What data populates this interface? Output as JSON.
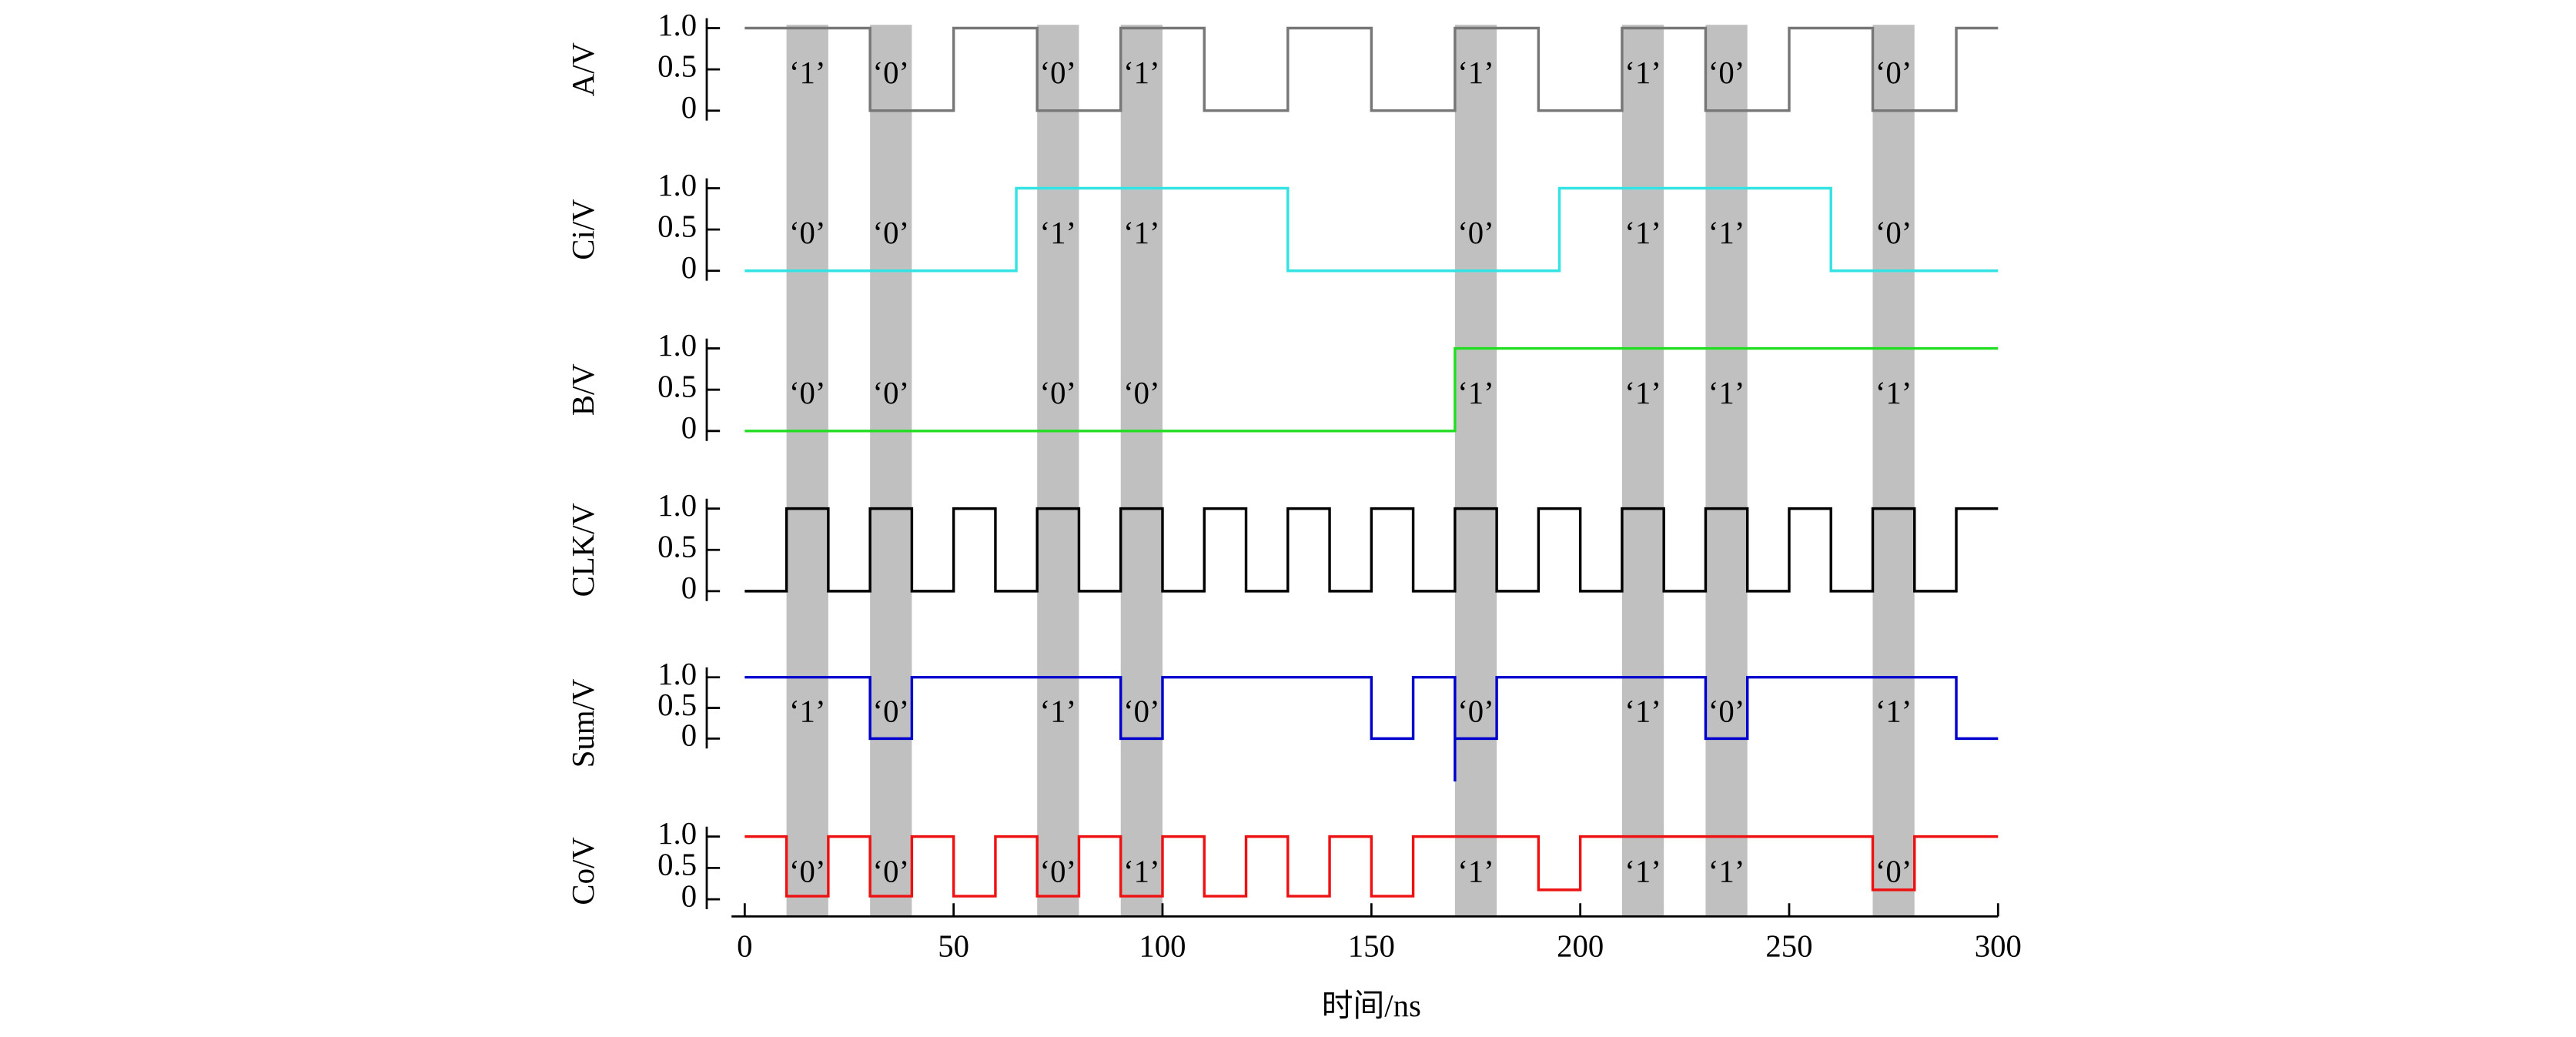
{
  "chart_data": [
    {
      "type": "line",
      "ylabel": "A/V",
      "ylim": [
        -0.1,
        1.1
      ],
      "yticks": [
        0,
        0.5,
        {
          "value": 1,
          "label": "1.0"
        }
      ],
      "bands": [
        [
          10,
          20
        ],
        [
          30,
          40
        ],
        [
          70,
          80
        ],
        [
          90,
          100
        ],
        [
          170,
          180
        ],
        [
          210,
          220
        ],
        [
          230,
          240
        ],
        [
          270,
          280
        ]
      ],
      "band_labels": [
        "‘1’",
        "‘0’",
        "‘0’",
        "‘1’",
        "‘1’",
        "‘1’",
        "‘0’",
        "‘0’"
      ],
      "x": [
        0,
        30,
        30,
        50,
        50,
        70,
        70,
        90,
        90,
        110,
        110,
        130,
        130,
        150,
        150,
        170,
        170,
        190,
        190,
        210,
        210,
        230,
        230,
        250,
        250,
        270,
        270,
        290,
        290,
        300
      ],
      "series": [
        {
          "color": "#777777",
          "values": [
            1,
            1,
            0,
            0,
            1,
            1,
            0,
            0,
            1,
            1,
            0,
            0,
            1,
            1,
            0,
            0,
            1,
            1,
            0,
            0,
            1,
            1,
            0,
            0,
            1,
            1,
            0,
            0,
            1,
            1
          ]
        }
      ]
    },
    {
      "type": "line",
      "ylabel": "Ci/V",
      "ylim": [
        -0.1,
        1.1
      ],
      "yticks": [
        0,
        0.5,
        {
          "value": 1,
          "label": "1.0"
        }
      ],
      "band_labels": [
        "‘0’",
        "‘0’",
        "‘1’",
        "‘1’",
        "‘0’",
        "‘1’",
        "‘1’",
        "‘0’"
      ],
      "x": [
        0,
        65,
        65,
        130,
        130,
        195,
        195,
        260,
        260,
        300
      ],
      "series": [
        {
          "color": "#33e3e3",
          "values": [
            0,
            0,
            1,
            1,
            0,
            0,
            1,
            1,
            0,
            0
          ]
        }
      ]
    },
    {
      "type": "line",
      "ylabel": "B/V",
      "ylim": [
        -0.1,
        1.1
      ],
      "yticks": [
        0,
        0.5,
        {
          "value": 1,
          "label": "1.0"
        }
      ],
      "band_labels": [
        "‘0’",
        "‘0’",
        "‘0’",
        "‘0’",
        "‘1’",
        "‘1’",
        "‘1’",
        "‘1’"
      ],
      "x": [
        0,
        170,
        170,
        300
      ],
      "series": [
        {
          "color": "#22dd22",
          "values": [
            0,
            0,
            1,
            1
          ]
        }
      ]
    },
    {
      "type": "line",
      "ylabel": "CLK/V",
      "ylim": [
        -0.1,
        1.1
      ],
      "yticks": [
        0,
        0.5,
        {
          "value": 1,
          "label": "1.0"
        }
      ],
      "x": [
        0,
        10,
        10,
        20,
        20,
        30,
        30,
        40,
        40,
        50,
        50,
        60,
        60,
        70,
        70,
        80,
        80,
        90,
        90,
        100,
        100,
        110,
        110,
        120,
        120,
        130,
        130,
        140,
        140,
        150,
        150,
        160,
        160,
        170,
        170,
        180,
        180,
        190,
        190,
        200,
        200,
        210,
        210,
        220,
        220,
        230,
        230,
        240,
        240,
        250,
        250,
        260,
        260,
        270,
        270,
        280,
        280,
        290,
        290,
        300
      ],
      "series": [
        {
          "color": "#000000",
          "values": [
            0,
            0,
            1,
            1,
            0,
            0,
            1,
            1,
            0,
            0,
            1,
            1,
            0,
            0,
            1,
            1,
            0,
            0,
            1,
            1,
            0,
            0,
            1,
            1,
            0,
            0,
            1,
            1,
            0,
            0,
            1,
            1,
            0,
            0,
            1,
            1,
            0,
            0,
            1,
            1,
            0,
            0,
            1,
            1,
            0,
            0,
            1,
            1,
            0,
            0,
            1,
            1,
            0,
            0,
            1,
            1,
            0,
            0,
            1,
            1
          ]
        }
      ]
    },
    {
      "type": "line",
      "ylabel": "Sum/V",
      "ylim": [
        -0.8,
        1.3
      ],
      "yticks": [
        0,
        0.5,
        {
          "value": 1,
          "label": "1.0"
        }
      ],
      "band_labels": [
        "‘1’",
        "‘0’",
        "‘1’",
        "‘0’",
        "‘0’",
        "‘1’",
        "‘0’",
        "‘1’"
      ],
      "x": [
        0,
        30,
        30,
        40,
        40,
        90,
        90,
        100,
        100,
        150,
        150,
        160,
        160,
        170,
        170,
        170,
        180,
        180,
        230,
        230,
        240,
        240,
        290,
        290,
        300
      ],
      "series": [
        {
          "color": "#0000cc",
          "values": [
            1,
            1,
            0,
            0,
            1,
            1,
            0,
            0,
            1,
            1,
            0,
            0,
            1,
            1,
            -0.7,
            0,
            0,
            1,
            1,
            0,
            0,
            1,
            1,
            0,
            0
          ]
        }
      ]
    },
    {
      "type": "line",
      "ylabel": "Co/V",
      "ylim": [
        -0.3,
        1.2
      ],
      "yticks": [
        0,
        0.5,
        {
          "value": 1,
          "label": "1.0"
        }
      ],
      "band_labels": [
        "‘0’",
        "‘0’",
        "‘0’",
        "‘1’",
        "‘1’",
        "‘1’",
        "‘1’",
        "‘0’"
      ],
      "xlabel": "时间/ns",
      "xlim": [
        0,
        300
      ],
      "xticks": [
        0,
        50,
        100,
        150,
        200,
        250,
        300
      ],
      "x": [
        0,
        10,
        10,
        20,
        20,
        30,
        30,
        40,
        40,
        50,
        50,
        60,
        60,
        70,
        70,
        80,
        80,
        90,
        90,
        100,
        100,
        110,
        110,
        120,
        120,
        130,
        130,
        140,
        140,
        150,
        150,
        160,
        160,
        190,
        190,
        200,
        200,
        270,
        270,
        280,
        280,
        300
      ],
      "series": [
        {
          "color": "#ee1111",
          "values": [
            1,
            1,
            0.05,
            0.05,
            1,
            1,
            0.05,
            0.05,
            1,
            1,
            0.05,
            0.05,
            1,
            1,
            0.05,
            0.05,
            1,
            1,
            0.05,
            0.05,
            1,
            1,
            0.05,
            0.05,
            1,
            1,
            0.05,
            0.05,
            1,
            1,
            0.05,
            0.05,
            1,
            1,
            0.15,
            0.15,
            1,
            1,
            0.15,
            0.15,
            1,
            1
          ]
        }
      ]
    }
  ]
}
